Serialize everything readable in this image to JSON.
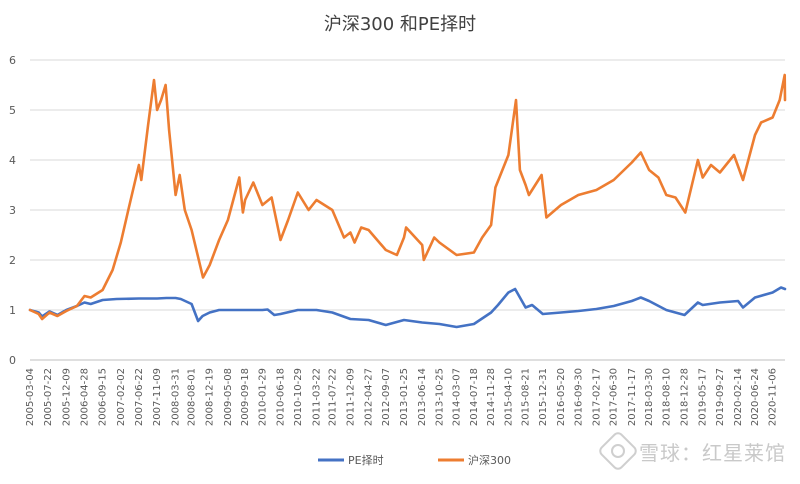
{
  "chart_data": {
    "type": "line",
    "title": "沪深300 和PE择时",
    "ylim": [
      0,
      6
    ],
    "yticks": [
      0,
      1,
      2,
      3,
      4,
      5,
      6
    ],
    "grid": "horizontal",
    "legend_position": "bottom",
    "xtick_labels": [
      "2005-03-04",
      "2005-07-22",
      "2005-12-09",
      "2006-04-28",
      "2006-09-15",
      "2007-02-02",
      "2007-06-22",
      "2007-11-09",
      "2008-03-31",
      "2008-08-01",
      "2008-12-19",
      "2009-05-08",
      "2009-09-18",
      "2010-01-29",
      "2010-06-18",
      "2010-10-29",
      "2011-03-22",
      "2011-07-22",
      "2011-12-09",
      "2012-04-27",
      "2012-09-07",
      "2013-01-25",
      "2013-06-14",
      "2013-10-25",
      "2014-03-07",
      "2014-07-18",
      "2014-11-28",
      "2015-04-10",
      "2015-08-21",
      "2015-12-31",
      "2016-05-20",
      "2016-09-30",
      "2017-02-17",
      "2017-06-30",
      "2017-11-17",
      "2018-03-30",
      "2018-08-10",
      "2018-12-28",
      "2019-05-17",
      "2019-09-27",
      "2020-02-14",
      "2020-06-24",
      "2020-11-06"
    ],
    "x_start": "2005-03-04",
    "x_end": "2021-02-10",
    "series": [
      {
        "name": "PE择时",
        "color": "#4472C4",
        "points": [
          [
            "2005-03-04",
            1.0
          ],
          [
            "2005-05-10",
            0.95
          ],
          [
            "2005-06-05",
            0.87
          ],
          [
            "2005-08-01",
            0.97
          ],
          [
            "2005-10-01",
            0.9
          ],
          [
            "2005-12-09",
            1.0
          ],
          [
            "2006-03-01",
            1.08
          ],
          [
            "2006-04-28",
            1.15
          ],
          [
            "2006-06-15",
            1.12
          ],
          [
            "2006-09-15",
            1.2
          ],
          [
            "2007-01-01",
            1.22
          ],
          [
            "2007-06-22",
            1.23
          ],
          [
            "2007-11-09",
            1.23
          ],
          [
            "2008-01-20",
            1.24
          ],
          [
            "2008-03-31",
            1.24
          ],
          [
            "2008-05-10",
            1.22
          ],
          [
            "2008-08-01",
            1.12
          ],
          [
            "2008-09-20",
            0.78
          ],
          [
            "2008-10-25",
            0.88
          ],
          [
            "2008-12-19",
            0.95
          ],
          [
            "2009-03-01",
            1.0
          ],
          [
            "2009-05-08",
            1.0
          ],
          [
            "2009-09-18",
            1.0
          ],
          [
            "2010-01-29",
            1.0
          ],
          [
            "2010-03-10",
            1.01
          ],
          [
            "2010-05-01",
            0.9
          ],
          [
            "2010-06-18",
            0.92
          ],
          [
            "2010-10-29",
            1.0
          ],
          [
            "2011-03-22",
            1.0
          ],
          [
            "2011-07-22",
            0.95
          ],
          [
            "2011-12-09",
            0.82
          ],
          [
            "2012-04-27",
            0.8
          ],
          [
            "2012-09-07",
            0.7
          ],
          [
            "2013-01-25",
            0.8
          ],
          [
            "2013-06-14",
            0.75
          ],
          [
            "2013-10-25",
            0.72
          ],
          [
            "2014-03-07",
            0.66
          ],
          [
            "2014-07-18",
            0.72
          ],
          [
            "2014-11-28",
            0.95
          ],
          [
            "2015-01-20",
            1.1
          ],
          [
            "2015-04-10",
            1.35
          ],
          [
            "2015-06-01",
            1.42
          ],
          [
            "2015-08-21",
            1.05
          ],
          [
            "2015-10-10",
            1.1
          ],
          [
            "2015-12-31",
            0.92
          ],
          [
            "2016-05-20",
            0.95
          ],
          [
            "2016-09-30",
            0.98
          ],
          [
            "2017-02-17",
            1.02
          ],
          [
            "2017-06-30",
            1.08
          ],
          [
            "2017-11-17",
            1.18
          ],
          [
            "2018-01-25",
            1.25
          ],
          [
            "2018-03-30",
            1.18
          ],
          [
            "2018-08-10",
            1.0
          ],
          [
            "2018-12-28",
            0.9
          ],
          [
            "2019-04-10",
            1.15
          ],
          [
            "2019-05-17",
            1.1
          ],
          [
            "2019-09-27",
            1.15
          ],
          [
            "2020-02-14",
            1.18
          ],
          [
            "2020-03-23",
            1.05
          ],
          [
            "2020-06-24",
            1.25
          ],
          [
            "2020-11-06",
            1.35
          ],
          [
            "2021-01-10",
            1.45
          ],
          [
            "2021-02-10",
            1.42
          ]
        ]
      },
      {
        "name": "沪深300",
        "color": "#ED7D31",
        "points": [
          [
            "2005-03-04",
            1.0
          ],
          [
            "2005-05-10",
            0.92
          ],
          [
            "2005-06-05",
            0.82
          ],
          [
            "2005-08-01",
            0.95
          ],
          [
            "2005-10-01",
            0.88
          ],
          [
            "2005-12-09",
            0.98
          ],
          [
            "2006-03-01",
            1.08
          ],
          [
            "2006-04-28",
            1.28
          ],
          [
            "2006-06-15",
            1.25
          ],
          [
            "2006-09-15",
            1.4
          ],
          [
            "2006-12-01",
            1.8
          ],
          [
            "2007-02-02",
            2.35
          ],
          [
            "2007-04-01",
            3.0
          ],
          [
            "2007-06-22",
            3.9
          ],
          [
            "2007-07-10",
            3.6
          ],
          [
            "2007-09-01",
            4.7
          ],
          [
            "2007-10-16",
            5.6
          ],
          [
            "2007-11-09",
            5.0
          ],
          [
            "2007-12-10",
            5.2
          ],
          [
            "2008-01-14",
            5.5
          ],
          [
            "2008-02-10",
            4.6
          ],
          [
            "2008-03-31",
            3.3
          ],
          [
            "2008-05-01",
            3.7
          ],
          [
            "2008-06-10",
            3.0
          ],
          [
            "2008-08-01",
            2.6
          ],
          [
            "2008-10-28",
            1.65
          ],
          [
            "2008-12-19",
            1.9
          ],
          [
            "2009-03-01",
            2.4
          ],
          [
            "2009-05-08",
            2.8
          ],
          [
            "2009-08-04",
            3.65
          ],
          [
            "2009-09-01",
            2.95
          ],
          [
            "2009-09-18",
            3.2
          ],
          [
            "2009-11-20",
            3.55
          ],
          [
            "2010-01-29",
            3.1
          ],
          [
            "2010-04-10",
            3.25
          ],
          [
            "2010-06-18",
            2.4
          ],
          [
            "2010-08-15",
            2.8
          ],
          [
            "2010-10-29",
            3.35
          ],
          [
            "2011-01-20",
            3.0
          ],
          [
            "2011-03-22",
            3.2
          ],
          [
            "2011-07-22",
            3.0
          ],
          [
            "2011-10-20",
            2.45
          ],
          [
            "2011-12-09",
            2.55
          ],
          [
            "2012-01-10",
            2.35
          ],
          [
            "2012-03-01",
            2.65
          ],
          [
            "2012-04-27",
            2.6
          ],
          [
            "2012-09-07",
            2.2
          ],
          [
            "2012-12-01",
            2.1
          ],
          [
            "2013-01-25",
            2.45
          ],
          [
            "2013-02-10",
            2.65
          ],
          [
            "2013-06-14",
            2.3
          ],
          [
            "2013-06-27",
            2.0
          ],
          [
            "2013-09-15",
            2.45
          ],
          [
            "2013-10-25",
            2.35
          ],
          [
            "2014-03-07",
            2.1
          ],
          [
            "2014-07-18",
            2.15
          ],
          [
            "2014-09-20",
            2.45
          ],
          [
            "2014-11-28",
            2.7
          ],
          [
            "2014-12-31",
            3.45
          ],
          [
            "2015-04-10",
            4.1
          ],
          [
            "2015-06-08",
            5.2
          ],
          [
            "2015-07-08",
            3.8
          ],
          [
            "2015-08-21",
            3.5
          ],
          [
            "2015-09-15",
            3.3
          ],
          [
            "2015-12-22",
            3.7
          ],
          [
            "2016-01-28",
            2.85
          ],
          [
            "2016-05-20",
            3.1
          ],
          [
            "2016-09-30",
            3.3
          ],
          [
            "2017-02-17",
            3.4
          ],
          [
            "2017-06-30",
            3.6
          ],
          [
            "2017-11-17",
            3.95
          ],
          [
            "2018-01-25",
            4.15
          ],
          [
            "2018-03-30",
            3.8
          ],
          [
            "2018-06-10",
            3.65
          ],
          [
            "2018-08-10",
            3.3
          ],
          [
            "2018-10-20",
            3.25
          ],
          [
            "2019-01-03",
            2.95
          ],
          [
            "2019-04-10",
            4.0
          ],
          [
            "2019-05-17",
            3.65
          ],
          [
            "2019-07-20",
            3.9
          ],
          [
            "2019-09-27",
            3.75
          ],
          [
            "2020-01-14",
            4.1
          ],
          [
            "2020-03-23",
            3.6
          ],
          [
            "2020-06-24",
            4.5
          ],
          [
            "2020-08-10",
            4.75
          ],
          [
            "2020-11-06",
            4.85
          ],
          [
            "2020-12-31",
            5.2
          ],
          [
            "2021-02-08",
            5.7
          ],
          [
            "2021-02-10",
            5.2
          ]
        ]
      }
    ]
  },
  "watermark": {
    "text": "雪球：红星莱馆"
  }
}
